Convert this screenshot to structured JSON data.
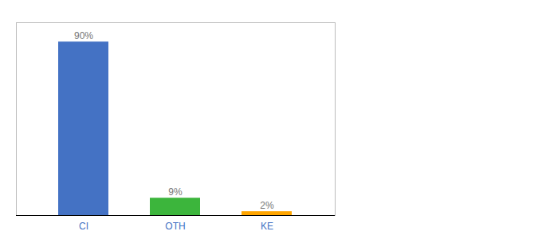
{
  "chart_data": {
    "type": "bar",
    "categories": [
      "CI",
      "OTH",
      "KE"
    ],
    "values": [
      90,
      9,
      2
    ],
    "value_labels": [
      "90%",
      "9%",
      "2%"
    ],
    "colors": [
      "#4472C4",
      "#3CB53C",
      "#FFA500"
    ],
    "ylim": [
      0,
      100
    ],
    "data_labels": true,
    "tick_labels": "x",
    "grid": false
  }
}
